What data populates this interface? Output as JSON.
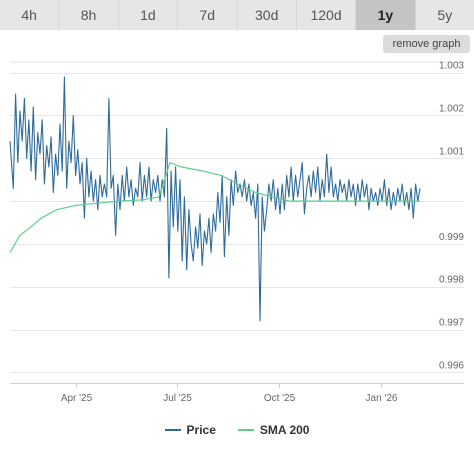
{
  "range_tabs": [
    {
      "label": "4h",
      "active": false
    },
    {
      "label": "8h",
      "active": false
    },
    {
      "label": "1d",
      "active": false
    },
    {
      "label": "7d",
      "active": false
    },
    {
      "label": "30d",
      "active": false
    },
    {
      "label": "120d",
      "active": false
    },
    {
      "label": "1y",
      "active": true
    },
    {
      "label": "5y",
      "active": false
    }
  ],
  "remove_graph_label": "remove graph",
  "colors": {
    "price": "#2f6b9a",
    "sma": "#5ccf8a",
    "grid": "#e6e6e6",
    "axis_text": "#666666"
  },
  "chart_data": {
    "type": "line",
    "x_ticks": [
      "Apr '25",
      "Jul '25",
      "Oct '25",
      "Jan '26"
    ],
    "x_tick_dates": [
      "2025-04-01",
      "2025-07-01",
      "2025-10-01",
      "2026-01-01"
    ],
    "x_range": [
      "2025-02-01",
      "2026-02-05"
    ],
    "y_ticks": [
      0.996,
      0.997,
      0.998,
      0.999,
      1.0,
      1.001,
      1.002,
      1.003
    ],
    "y_tick_labels": [
      "0.996",
      "0.997",
      "0.998",
      "0.999",
      "",
      "1.001",
      "1.002",
      "1.003"
    ],
    "ylim": [
      0.99575,
      1.00325
    ],
    "grid": true,
    "legend_position": "bottom-center",
    "series": [
      {
        "name": "Price",
        "points": [
          [
            "2025-02-01",
            1.0014
          ],
          [
            "2025-02-04",
            1.0003
          ],
          [
            "2025-02-06",
            1.0025
          ],
          [
            "2025-02-08",
            1.0009
          ],
          [
            "2025-02-10",
            1.0021
          ],
          [
            "2025-02-12",
            1.0014
          ],
          [
            "2025-02-14",
            1.0024
          ],
          [
            "2025-02-16",
            1.001
          ],
          [
            "2025-02-18",
            1.0019
          ],
          [
            "2025-02-20",
            1.0007
          ],
          [
            "2025-02-22",
            1.0022
          ],
          [
            "2025-02-24",
            1.0005
          ],
          [
            "2025-02-26",
            1.0016
          ],
          [
            "2025-02-28",
            1.0011
          ],
          [
            "2025-03-02",
            1.0019
          ],
          [
            "2025-03-04",
            1.0004
          ],
          [
            "2025-03-06",
            1.0013
          ],
          [
            "2025-03-08",
            1.0008
          ],
          [
            "2025-03-10",
            1.0015
          ],
          [
            "2025-03-12",
            1.0002
          ],
          [
            "2025-03-14",
            1.0011
          ],
          [
            "2025-03-16",
            1.0006
          ],
          [
            "2025-03-18",
            1.0018
          ],
          [
            "2025-03-20",
            1.0007
          ],
          [
            "2025-03-22",
            1.0029
          ],
          [
            "2025-03-24",
            1.0003
          ],
          [
            "2025-03-26",
            1.0014
          ],
          [
            "2025-03-28",
            1.0009
          ],
          [
            "2025-03-30",
            1.002
          ],
          [
            "2025-04-01",
            1.0006
          ],
          [
            "2025-04-03",
            1.0012
          ],
          [
            "2025-04-05",
            1.0004
          ],
          [
            "2025-04-07",
            1.0009
          ],
          [
            "2025-04-09",
            0.9996
          ],
          [
            "2025-04-11",
            1.001
          ],
          [
            "2025-04-13",
            1.0001
          ],
          [
            "2025-04-15",
            1.0007
          ],
          [
            "2025-04-17",
            1.0
          ],
          [
            "2025-04-19",
            1.0005
          ],
          [
            "2025-04-21",
            0.9998
          ],
          [
            "2025-04-23",
            1.0006
          ],
          [
            "2025-04-25",
            1.0001
          ],
          [
            "2025-04-27",
            1.0004
          ],
          [
            "2025-04-29",
            1.0001
          ],
          [
            "2025-05-01",
            1.0024
          ],
          [
            "2025-05-03",
            1.0003
          ],
          [
            "2025-05-05",
            1.0006
          ],
          [
            "2025-05-07",
            0.9992
          ],
          [
            "2025-05-09",
            1.0004
          ],
          [
            "2025-05-11",
            0.9998
          ],
          [
            "2025-05-13",
            1.0006
          ],
          [
            "2025-05-15",
            1.0
          ],
          [
            "2025-05-17",
            1.0008
          ],
          [
            "2025-05-19",
            1.0001
          ],
          [
            "2025-05-21",
            1.0005
          ],
          [
            "2025-05-23",
            0.9999
          ],
          [
            "2025-05-25",
            1.0003
          ],
          [
            "2025-05-27",
            1.0001
          ],
          [
            "2025-05-29",
            1.0009
          ],
          [
            "2025-05-31",
            1.0
          ],
          [
            "2025-06-02",
            1.0006
          ],
          [
            "2025-06-04",
            1.0001
          ],
          [
            "2025-06-06",
            1.0008
          ],
          [
            "2025-06-08",
            1.0
          ],
          [
            "2025-06-10",
            1.0005
          ],
          [
            "2025-06-12",
            1.0002
          ],
          [
            "2025-06-14",
            1.0006
          ],
          [
            "2025-06-16",
            1.0
          ],
          [
            "2025-06-18",
            1.0005
          ],
          [
            "2025-06-20",
            1.0001
          ],
          [
            "2025-06-22",
            1.0017
          ],
          [
            "2025-06-24",
            0.9982
          ],
          [
            "2025-06-26",
            1.0007
          ],
          [
            "2025-06-28",
            0.9994
          ],
          [
            "2025-06-30",
            1.0008
          ],
          [
            "2025-07-02",
            0.9993
          ],
          [
            "2025-07-04",
            1.0005
          ],
          [
            "2025-07-06",
            0.9986
          ],
          [
            "2025-07-08",
            1.0001
          ],
          [
            "2025-07-10",
            0.9984
          ],
          [
            "2025-07-12",
            0.9998
          ],
          [
            "2025-07-14",
            0.999
          ],
          [
            "2025-07-16",
            0.9986
          ],
          [
            "2025-07-18",
            0.9994
          ],
          [
            "2025-07-20",
            0.9989
          ],
          [
            "2025-07-22",
            0.9997
          ],
          [
            "2025-07-24",
            0.9985
          ],
          [
            "2025-07-26",
            0.9993
          ],
          [
            "2025-07-28",
            0.999
          ],
          [
            "2025-07-30",
            0.9996
          ],
          [
            "2025-08-01",
            0.9988
          ],
          [
            "2025-08-03",
            0.9997
          ],
          [
            "2025-08-05",
            0.9993
          ],
          [
            "2025-08-07",
            1.0002
          ],
          [
            "2025-08-09",
            0.9995
          ],
          [
            "2025-08-11",
            1.0006
          ],
          [
            "2025-08-13",
            0.9987
          ],
          [
            "2025-08-15",
            1.0001
          ],
          [
            "2025-08-17",
            0.9992
          ],
          [
            "2025-08-19",
            1.0005
          ],
          [
            "2025-08-21",
            0.9999
          ],
          [
            "2025-08-23",
            1.0007
          ],
          [
            "2025-08-25",
            1.0002
          ],
          [
            "2025-08-27",
            1.0004
          ],
          [
            "2025-08-29",
            1.0001
          ],
          [
            "2025-08-31",
            1.0005
          ],
          [
            "2025-09-02",
            1.0
          ],
          [
            "2025-09-04",
            1.0004
          ],
          [
            "2025-09-06",
            0.9999
          ],
          [
            "2025-09-08",
            1.0002
          ],
          [
            "2025-09-10",
            0.9996
          ],
          [
            "2025-09-12",
            1.0004
          ],
          [
            "2025-09-14",
            0.9972
          ],
          [
            "2025-09-16",
            1.0001
          ],
          [
            "2025-09-18",
            0.9993
          ],
          [
            "2025-09-20",
            0.9998
          ],
          [
            "2025-09-22",
            1.0004
          ],
          [
            "2025-09-24",
            1.0
          ],
          [
            "2025-09-26",
            1.0005
          ],
          [
            "2025-09-28",
            0.9998
          ],
          [
            "2025-09-30",
            1.0003
          ],
          [
            "2025-10-02",
            0.9997
          ],
          [
            "2025-10-04",
            1.0004
          ],
          [
            "2025-10-06",
            0.9998
          ],
          [
            "2025-10-08",
            1.0006
          ],
          [
            "2025-10-10",
            1.0001
          ],
          [
            "2025-10-12",
            1.0008
          ],
          [
            "2025-10-14",
            1.0
          ],
          [
            "2025-10-16",
            1.0006
          ],
          [
            "2025-10-18",
            1.0001
          ],
          [
            "2025-10-20",
            1.0005
          ],
          [
            "2025-10-22",
            1.0009
          ],
          [
            "2025-10-24",
            0.9997
          ],
          [
            "2025-10-26",
            1.0003
          ],
          [
            "2025-10-28",
            1.0006
          ],
          [
            "2025-10-30",
            1.0001
          ],
          [
            "2025-11-01",
            1.0007
          ],
          [
            "2025-11-03",
            1.0002
          ],
          [
            "2025-11-05",
            1.0008
          ],
          [
            "2025-11-07",
            1.0
          ],
          [
            "2025-11-09",
            1.0005
          ],
          [
            "2025-11-11",
            1.0001
          ],
          [
            "2025-11-13",
            1.0011
          ],
          [
            "2025-11-15",
            1.0002
          ],
          [
            "2025-11-17",
            1.0008
          ],
          [
            "2025-11-19",
            1.0001
          ],
          [
            "2025-11-21",
            1.0004
          ],
          [
            "2025-11-23",
            1.0
          ],
          [
            "2025-11-25",
            1.0005
          ],
          [
            "2025-11-27",
            1.0002
          ],
          [
            "2025-11-29",
            1.0004
          ],
          [
            "2025-12-01",
            1.0
          ],
          [
            "2025-12-03",
            1.0005
          ],
          [
            "2025-12-05",
            1.0001
          ],
          [
            "2025-12-07",
            1.0004
          ],
          [
            "2025-12-09",
            0.9999
          ],
          [
            "2025-12-11",
            1.0004
          ],
          [
            "2025-12-13",
            1.0
          ],
          [
            "2025-12-15",
            1.0005
          ],
          [
            "2025-12-17",
            1.0001
          ],
          [
            "2025-12-19",
            1.0004
          ],
          [
            "2025-12-21",
            0.9998
          ],
          [
            "2025-12-23",
            1.0003
          ],
          [
            "2025-12-25",
            1.0
          ],
          [
            "2025-12-27",
            1.0002
          ],
          [
            "2025-12-29",
            0.9999
          ],
          [
            "2025-12-31",
            1.0003
          ],
          [
            "2026-01-02",
            1.0
          ],
          [
            "2026-01-04",
            1.0005
          ],
          [
            "2026-01-06",
            0.9999
          ],
          [
            "2026-01-08",
            1.0003
          ],
          [
            "2026-01-10",
            0.9998
          ],
          [
            "2026-01-12",
            1.0002
          ],
          [
            "2026-01-14",
            0.9999
          ],
          [
            "2026-01-16",
            1.0003
          ],
          [
            "2026-01-18",
            1.0
          ],
          [
            "2026-01-20",
            1.0004
          ],
          [
            "2026-01-22",
            0.9999
          ],
          [
            "2026-01-24",
            1.0002
          ],
          [
            "2026-01-26",
            0.9998
          ],
          [
            "2026-01-28",
            1.0003
          ],
          [
            "2026-01-30",
            0.9996
          ],
          [
            "2026-02-01",
            1.0004
          ],
          [
            "2026-02-03",
            1.0
          ],
          [
            "2026-02-05",
            1.0003
          ]
        ]
      },
      {
        "name": "SMA 200",
        "points": [
          [
            "2025-02-01",
            0.9988
          ],
          [
            "2025-02-10",
            0.9992
          ],
          [
            "2025-02-20",
            0.9994
          ],
          [
            "2025-03-01",
            0.9996
          ],
          [
            "2025-03-15",
            0.9998
          ],
          [
            "2025-04-01",
            0.9999
          ],
          [
            "2025-04-20",
            0.99995
          ],
          [
            "2025-05-10",
            1.0
          ],
          [
            "2025-06-01",
            1.00003
          ],
          [
            "2025-06-15",
            1.0001
          ],
          [
            "2025-06-25",
            1.0009
          ],
          [
            "2025-07-05",
            1.0008
          ],
          [
            "2025-07-25",
            1.0007
          ],
          [
            "2025-08-10",
            1.0006
          ],
          [
            "2025-08-25",
            1.0004
          ],
          [
            "2025-09-10",
            1.0002
          ],
          [
            "2025-09-25",
            1.0001
          ],
          [
            "2025-10-10",
            1.0
          ],
          [
            "2025-11-01",
            1.0
          ],
          [
            "2025-12-01",
            1.0
          ],
          [
            "2026-01-01",
            1.0
          ],
          [
            "2026-02-05",
            1.0
          ]
        ]
      }
    ]
  }
}
